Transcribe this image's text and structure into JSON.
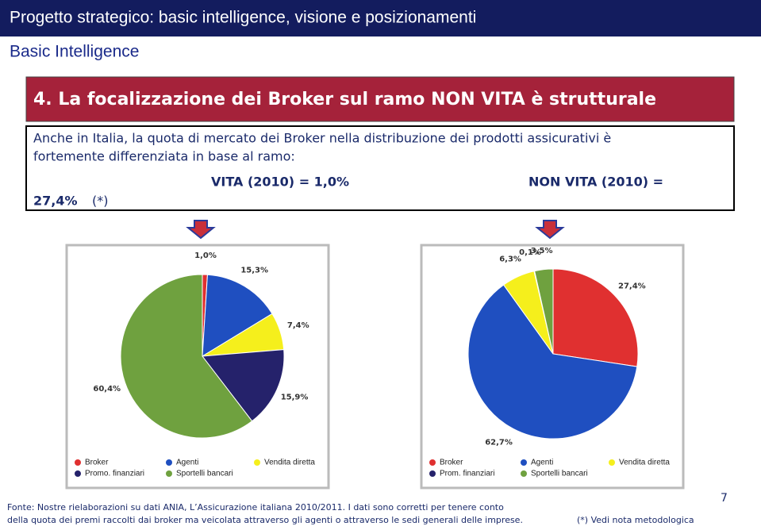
{
  "header": {
    "title": "Progetto strategico: basic intelligence, visione e posizionamenti",
    "subtitle": "Basic Intelligence"
  },
  "section": {
    "heading": "4.  La focalizzazione dei Broker sul ramo NON VITA è strutturale",
    "line1": "Anche in Italia, la quota di mercato dei Broker nella distribuzione dei prodotti assicurativi è",
    "line2": "fortemente differenziata in base al ramo:",
    "vita": "VITA (2010) = 1,0%",
    "nonvita": "NON VITA (2010) =",
    "nonvita_value": "27,4%",
    "note_mark": "(*)"
  },
  "chart_data": [
    {
      "type": "pie",
      "categories": [
        "Broker",
        "Agenti",
        "Vendita diretta",
        "Promo. finanziari",
        "Sportelli bancari"
      ],
      "colors": [
        "#e03030",
        "#1f4fc0",
        "#f5ef1c",
        "#25226b",
        "#6fa13f"
      ],
      "values": [
        1.0,
        15.3,
        7.4,
        15.9,
        60.4
      ],
      "value_labels": [
        "1,0%",
        "15,3%",
        "7,4%",
        "15,9%",
        "60,4%"
      ]
    },
    {
      "type": "pie",
      "categories": [
        "Broker",
        "Agenti",
        "Vendita diretta",
        "Prom. finanziari",
        "Sportelli bancari"
      ],
      "colors": [
        "#e03030",
        "#1f4fc0",
        "#f5ef1c",
        "#25226b",
        "#6fa13f"
      ],
      "values": [
        27.4,
        62.7,
        6.3,
        0.1,
        3.5
      ],
      "value_labels": [
        "27,4%",
        "62,7%",
        "6,3%",
        "0,1%",
        "3,5%"
      ]
    }
  ],
  "footer": {
    "source1": "Fonte: Nostre rielaborazioni su dati ANIA, L’Assicurazione italiana 2010/2011. I dati sono corretti per tenere conto",
    "source2": "della quota dei premi raccolti dai broker ma veicolata attraverso gli agenti o attraverso le sedi generali delle imprese.",
    "note": "(*) Vedi nota metodologica",
    "page": "7"
  }
}
